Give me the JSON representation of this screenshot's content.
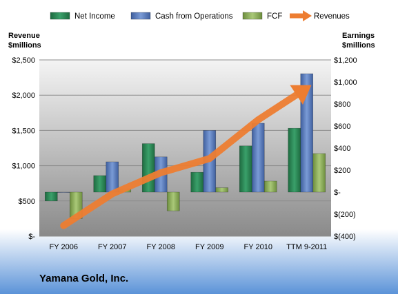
{
  "chart_data": {
    "type": "bar",
    "title": "",
    "company": "Yamana Gold, Inc.",
    "left_axis_label": [
      "Revenue",
      "$millions"
    ],
    "right_axis_label": [
      "Earnings",
      "$millions"
    ],
    "categories": [
      "FY 2006",
      "FY 2007",
      "FY 2008",
      "FY 2009",
      "FY 2010",
      "TTM 9-2011"
    ],
    "left_axis": {
      "min": 0,
      "max": 2500,
      "ticks": [
        0,
        500,
        1000,
        1500,
        2000,
        2500
      ],
      "tick_labels": [
        "$-",
        "$500",
        "$1,000",
        "$1,500",
        "$2,000",
        "$2,500"
      ]
    },
    "right_axis": {
      "min": -400,
      "max": 1200,
      "ticks": [
        -400,
        -200,
        0,
        200,
        400,
        600,
        800,
        1000,
        1200
      ],
      "tick_labels": [
        "$(400)",
        "$(200)",
        "$-",
        "$200",
        "$400",
        "$600",
        "$800",
        "$1,000",
        "$1,200"
      ]
    },
    "series": [
      {
        "name": "Net Income",
        "type": "bar",
        "axis": "right",
        "color": "#2e8b57",
        "values": [
          -80,
          150,
          440,
          180,
          420,
          580
        ]
      },
      {
        "name": "Cash from Operations",
        "type": "bar",
        "axis": "right",
        "color": "#5b7fc0",
        "values": [
          0,
          275,
          320,
          560,
          625,
          1075
        ]
      },
      {
        "name": "FCF",
        "type": "bar",
        "axis": "right",
        "color": "#8fb05c",
        "values": [
          -240,
          30,
          -170,
          40,
          100,
          350
        ]
      },
      {
        "name": "Revenues",
        "type": "line",
        "axis": "left",
        "color": "#ed7d31",
        "values": [
          150,
          600,
          900,
          1100,
          1650,
          2100
        ]
      }
    ],
    "legend_position": "top",
    "grid": true
  }
}
